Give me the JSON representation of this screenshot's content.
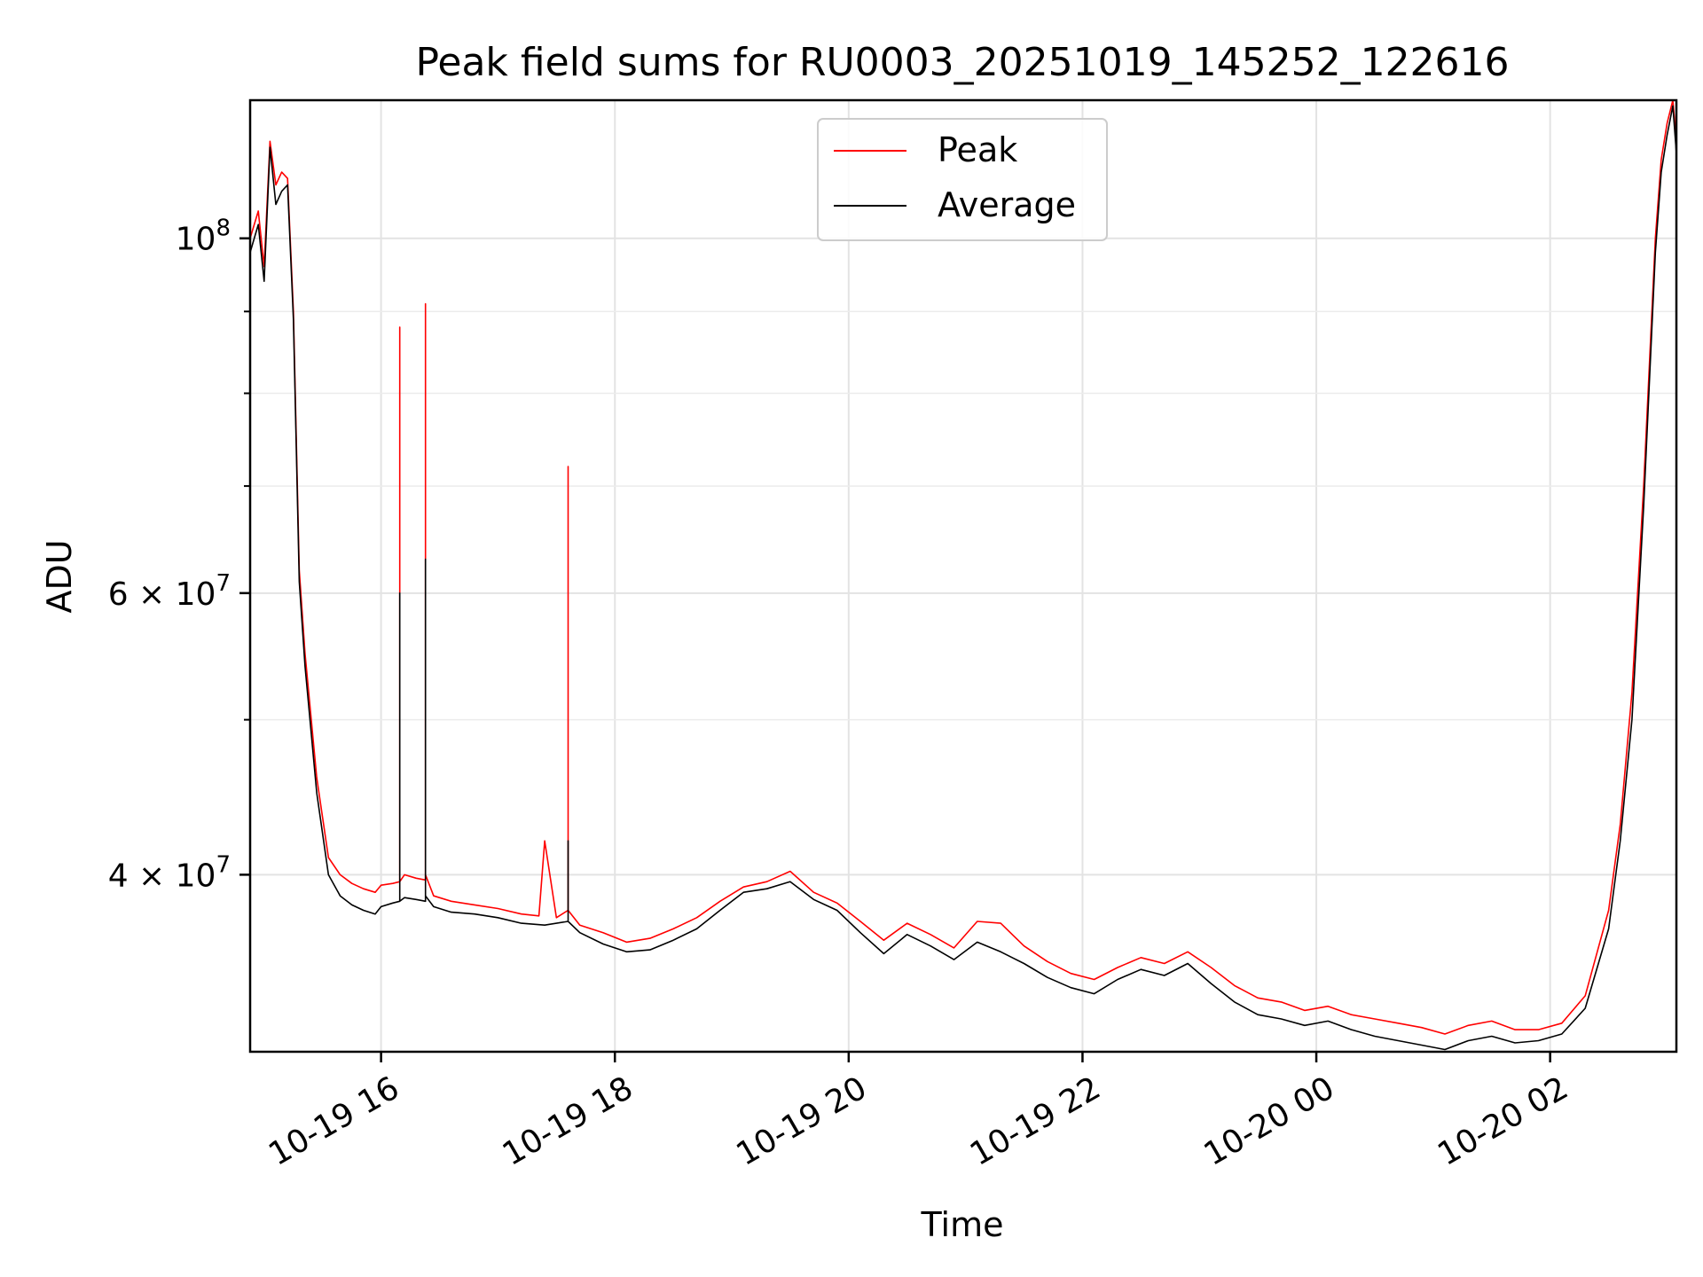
{
  "chart_data": {
    "type": "line",
    "title": "Peak field sums for RU0003_20251019_145252_122616",
    "xlabel": "Time",
    "ylabel": "ADU",
    "yscale": "log",
    "grid": true,
    "legend_position": "top-center",
    "xlim_hours": [
      14.88,
      27.08
    ],
    "ylim": [
      31000000,
      122000000
    ],
    "x_ticks": [
      {
        "hours": 16,
        "label": "10-19 16"
      },
      {
        "hours": 18,
        "label": "10-19 18"
      },
      {
        "hours": 20,
        "label": "10-19 20"
      },
      {
        "hours": 22,
        "label": "10-19 22"
      },
      {
        "hours": 24,
        "label": "10-20 00"
      },
      {
        "hours": 26,
        "label": "10-20 02"
      }
    ],
    "y_major_ticks": [
      {
        "value": 100000000,
        "base": "10",
        "exp": "8"
      },
      {
        "value": 60000000,
        "base": "6 × 10",
        "exp": "7"
      },
      {
        "value": 40000000,
        "base": "4 × 10",
        "exp": "7"
      }
    ],
    "y_minor_ticks": [
      50000000,
      70000000,
      80000000,
      90000000
    ],
    "series": [
      {
        "name": "Peak",
        "color": "#ff0000",
        "x_hours": [
          14.88,
          14.95,
          15.0,
          15.05,
          15.1,
          15.15,
          15.2,
          15.25,
          15.3,
          15.35,
          15.45,
          15.55,
          15.65,
          15.75,
          15.85,
          15.95,
          16.0,
          16.1,
          16.16,
          16.16,
          16.16,
          16.2,
          16.3,
          16.38,
          16.38,
          16.38,
          16.45,
          16.6,
          16.8,
          17.0,
          17.2,
          17.35,
          17.4,
          17.5,
          17.6,
          17.6,
          17.6,
          17.7,
          17.9,
          18.1,
          18.3,
          18.5,
          18.7,
          18.9,
          19.1,
          19.3,
          19.5,
          19.7,
          19.9,
          20.1,
          20.3,
          20.5,
          20.7,
          20.9,
          21.1,
          21.3,
          21.5,
          21.7,
          21.9,
          22.1,
          22.3,
          22.5,
          22.7,
          22.9,
          23.1,
          23.3,
          23.5,
          23.7,
          23.9,
          24.1,
          24.3,
          24.5,
          24.7,
          24.9,
          25.1,
          25.3,
          25.5,
          25.7,
          25.9,
          26.1,
          26.3,
          26.5,
          26.6,
          26.7,
          26.8,
          26.9,
          26.95,
          27.0,
          27.05,
          27.08
        ],
        "values": [
          100000000,
          104000000,
          96000000,
          115000000,
          108000000,
          110000000,
          109000000,
          90000000,
          62000000,
          55000000,
          46000000,
          41000000,
          40000000,
          39500000,
          39200000,
          39000000,
          39400000,
          39500000,
          39600000,
          88000000,
          39600000,
          40000000,
          39800000,
          39700000,
          91000000,
          40000000,
          38800000,
          38500000,
          38300000,
          38100000,
          37800000,
          37700000,
          42000000,
          37600000,
          38000000,
          72000000,
          38000000,
          37200000,
          36800000,
          36300000,
          36500000,
          37000000,
          37600000,
          38500000,
          39300000,
          39600000,
          40200000,
          39000000,
          38400000,
          37400000,
          36400000,
          37300000,
          36700000,
          36000000,
          37400000,
          37300000,
          36100000,
          35300000,
          34700000,
          34400000,
          35000000,
          35500000,
          35200000,
          35800000,
          35000000,
          34100000,
          33500000,
          33300000,
          32900000,
          33100000,
          32700000,
          32500000,
          32300000,
          32100000,
          31800000,
          32200000,
          32400000,
          32000000,
          32000000,
          32300000,
          33600000,
          38000000,
          43000000,
          52000000,
          70000000,
          100000000,
          112000000,
          118000000,
          122000000,
          115000000
        ]
      },
      {
        "name": "Average",
        "color": "#000000",
        "x_hours": [
          14.88,
          14.95,
          15.0,
          15.05,
          15.1,
          15.15,
          15.2,
          15.25,
          15.3,
          15.35,
          15.45,
          15.55,
          15.65,
          15.75,
          15.85,
          15.95,
          16.0,
          16.1,
          16.16,
          16.16,
          16.16,
          16.2,
          16.3,
          16.38,
          16.38,
          16.38,
          16.45,
          16.6,
          16.8,
          17.0,
          17.2,
          17.4,
          17.6,
          17.6,
          17.6,
          17.7,
          17.9,
          18.1,
          18.3,
          18.5,
          18.7,
          18.9,
          19.1,
          19.3,
          19.5,
          19.7,
          19.9,
          20.1,
          20.3,
          20.5,
          20.7,
          20.9,
          21.1,
          21.3,
          21.5,
          21.7,
          21.9,
          22.1,
          22.3,
          22.5,
          22.7,
          22.9,
          23.1,
          23.3,
          23.5,
          23.7,
          23.9,
          24.1,
          24.3,
          24.5,
          24.7,
          24.9,
          25.1,
          25.3,
          25.5,
          25.7,
          25.9,
          26.1,
          26.3,
          26.5,
          26.6,
          26.7,
          26.8,
          26.9,
          26.95,
          27.0,
          27.05,
          27.08
        ],
        "values": [
          98000000,
          102000000,
          94000000,
          114000000,
          105000000,
          107000000,
          108000000,
          89000000,
          61000000,
          54000000,
          45000000,
          40000000,
          38800000,
          38300000,
          38000000,
          37800000,
          38200000,
          38400000,
          38500000,
          60000000,
          38500000,
          38700000,
          38600000,
          38500000,
          63000000,
          38800000,
          38200000,
          37900000,
          37800000,
          37600000,
          37300000,
          37200000,
          37400000,
          42000000,
          37400000,
          36800000,
          36200000,
          35800000,
          35900000,
          36400000,
          37000000,
          38000000,
          39000000,
          39200000,
          39600000,
          38600000,
          38000000,
          36800000,
          35700000,
          36700000,
          36100000,
          35400000,
          36300000,
          35800000,
          35200000,
          34500000,
          34000000,
          33700000,
          34400000,
          34900000,
          34600000,
          35200000,
          34200000,
          33300000,
          32700000,
          32500000,
          32200000,
          32400000,
          32000000,
          31700000,
          31500000,
          31300000,
          31100000,
          31500000,
          31700000,
          31400000,
          31500000,
          31800000,
          33000000,
          37000000,
          42000000,
          50000000,
          68000000,
          98000000,
          110000000,
          116000000,
          121000000,
          113000000
        ]
      }
    ]
  }
}
